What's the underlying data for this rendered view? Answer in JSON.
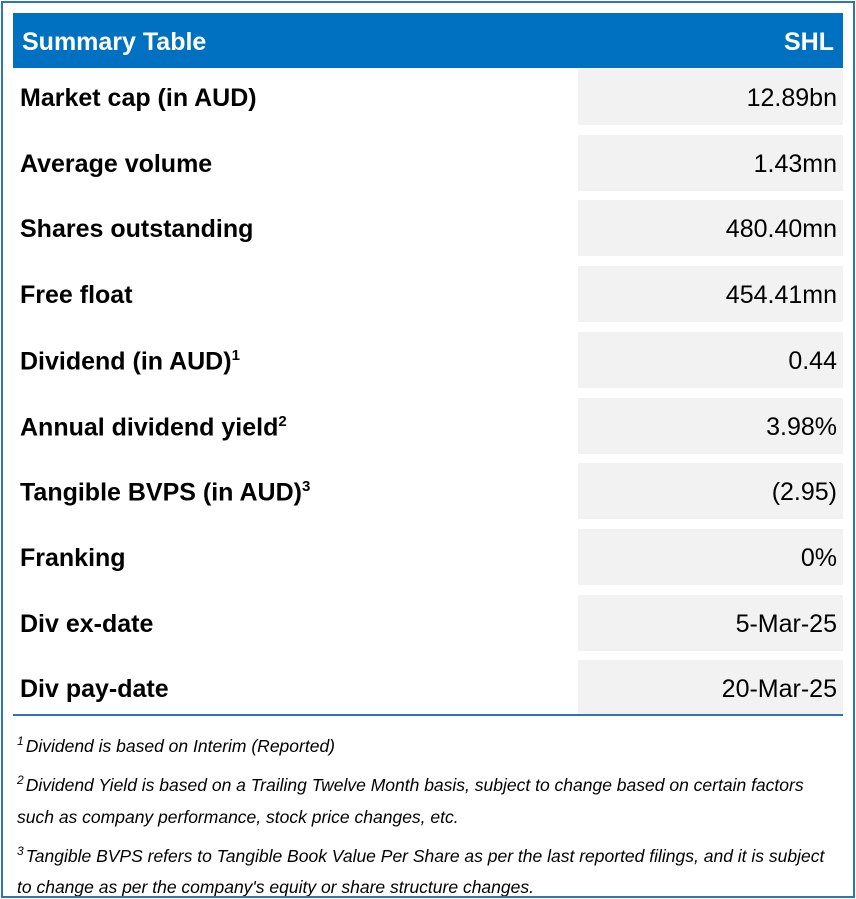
{
  "table": {
    "header": [
      "Summary Table",
      "SHL"
    ],
    "rows": [
      {
        "label": "Market cap (in AUD)",
        "value": "12.89bn"
      },
      {
        "label": "Average volume",
        "value": "1.43mn"
      },
      {
        "label": "Shares outstanding",
        "value": "480.40mn"
      },
      {
        "label": "Free float",
        "value": "454.41mn"
      },
      {
        "label": "Dividend (in AUD)",
        "note": "1",
        "value": "0.44"
      },
      {
        "label": "Annual dividend yield",
        "note": "2",
        "value": "3.98%"
      },
      {
        "label": "Tangible BVPS (in AUD)",
        "note": "3",
        "value": "(2.95)"
      },
      {
        "label": "Franking",
        "value": "0%"
      },
      {
        "label": "Div ex-date",
        "value": "5-Mar-25"
      },
      {
        "label": "Div pay-date",
        "value": "20-Mar-25"
      }
    ]
  },
  "footnotes": [
    {
      "mark": "1",
      "text": "Dividend is based on Interim (Reported)"
    },
    {
      "mark": "2",
      "text": "Dividend Yield is based on a Trailing Twelve Month basis, subject to change based on certain factors such as company performance, stock price changes, etc."
    },
    {
      "mark": "3",
      "text": "Tangible BVPS refers to Tangible Book Value Per Share as per the last reported filings, and it is subject to change as per the company's equity or share structure changes."
    }
  ]
}
